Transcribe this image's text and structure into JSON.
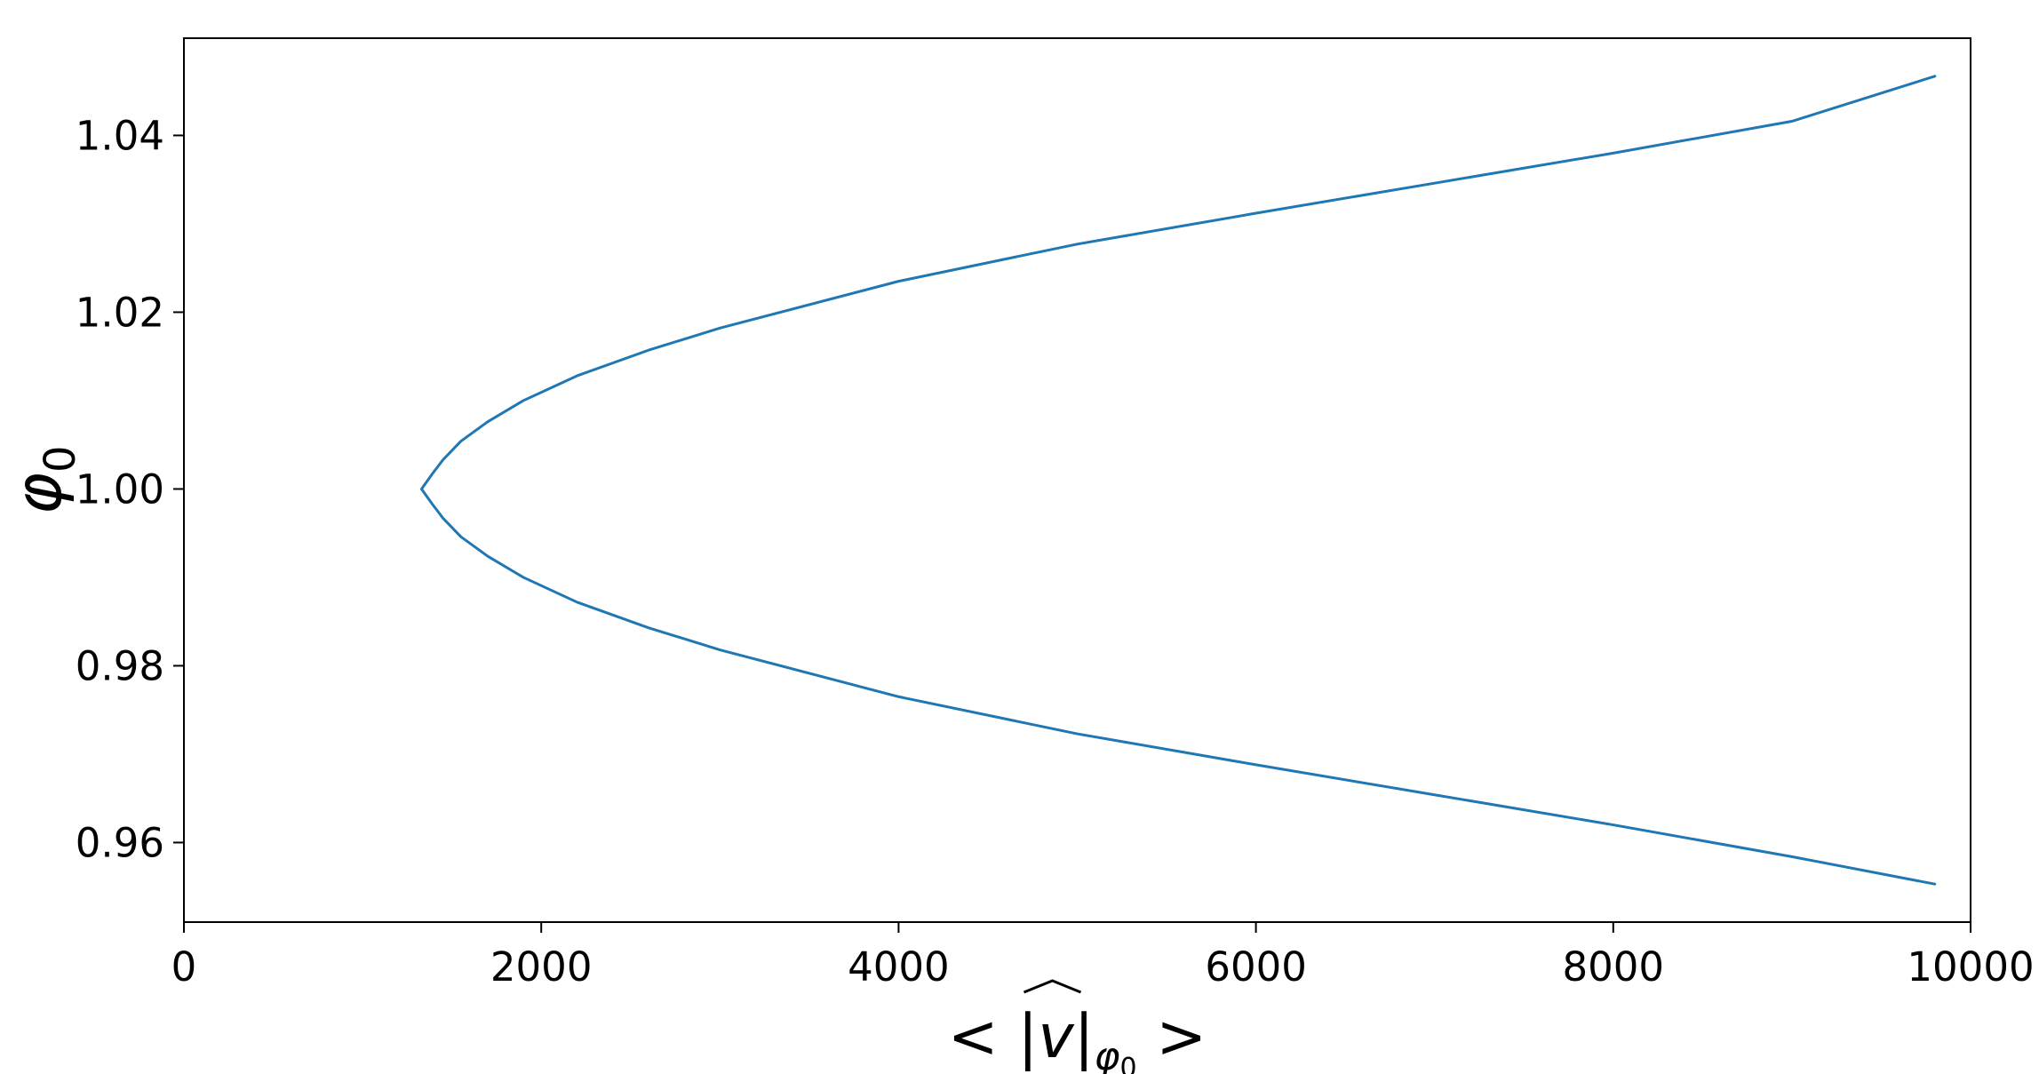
{
  "chart_data": {
    "type": "line",
    "title": "",
    "xlabel": "< |v̂|_{φ₀} >",
    "ylabel": "φ₀",
    "xlim": [
      0,
      10000
    ],
    "ylim": [
      0.951,
      1.051
    ],
    "xticks": [
      0,
      2000,
      4000,
      6000,
      8000,
      10000
    ],
    "xtick_labels": [
      "0",
      "2000",
      "4000",
      "6000",
      "8000",
      "10000"
    ],
    "yticks": [
      0.96,
      0.98,
      1.0,
      1.02,
      1.04
    ],
    "ytick_labels": [
      "0.96",
      "0.98",
      "1.00",
      "1.02",
      "1.04"
    ],
    "grid": false,
    "legend": "none",
    "colors": {
      "line": "#1f77b4",
      "axes": "#000000",
      "background": "#ffffff"
    },
    "series": [
      {
        "points": [
          [
            9800,
            0.9553
          ],
          [
            9000,
            0.9584
          ],
          [
            8000,
            0.962
          ],
          [
            7000,
            0.9654
          ],
          [
            6000,
            0.9688
          ],
          [
            5000,
            0.9723
          ],
          [
            4000,
            0.9765
          ],
          [
            3000,
            0.9818
          ],
          [
            2600,
            0.9843
          ],
          [
            2200,
            0.9872
          ],
          [
            1900,
            0.99
          ],
          [
            1700,
            0.9924
          ],
          [
            1550,
            0.9946
          ],
          [
            1450,
            0.9967
          ],
          [
            1390,
            0.9983
          ],
          [
            1330,
            1.0
          ],
          [
            1390,
            1.0017
          ],
          [
            1450,
            1.0033
          ],
          [
            1550,
            1.0054
          ],
          [
            1700,
            1.0076
          ],
          [
            1900,
            1.01
          ],
          [
            2200,
            1.0128
          ],
          [
            2600,
            1.0157
          ],
          [
            3000,
            1.0182
          ],
          [
            4000,
            1.0235
          ],
          [
            5000,
            1.0277
          ],
          [
            6000,
            1.0312
          ],
          [
            7000,
            1.0346
          ],
          [
            8000,
            1.038
          ],
          [
            9000,
            1.0416
          ],
          [
            9800,
            1.0467
          ]
        ]
      }
    ]
  }
}
